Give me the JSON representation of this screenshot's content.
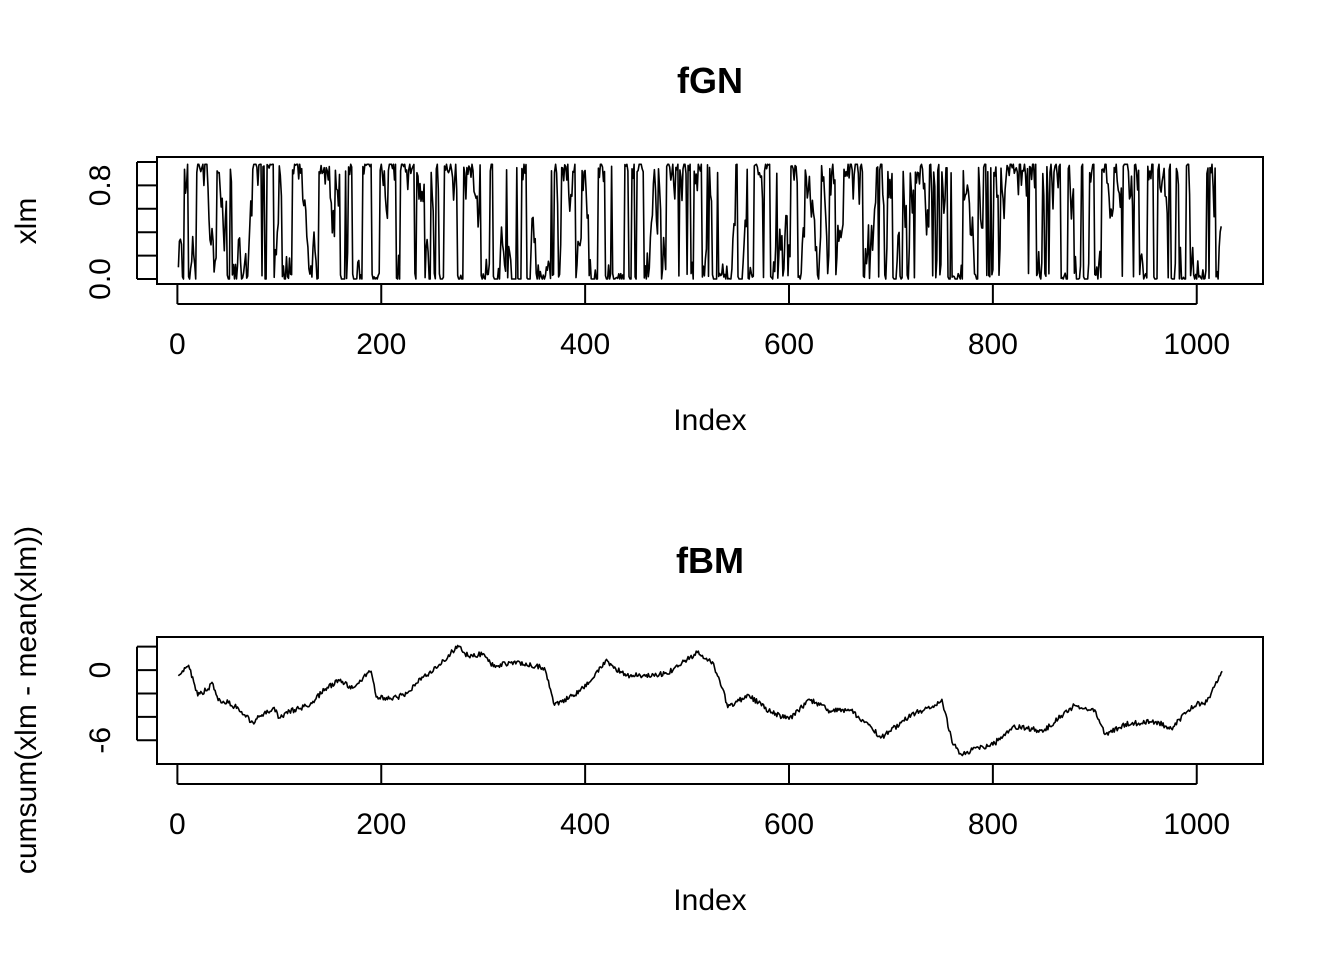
{
  "chart_data": [
    {
      "type": "line",
      "title": "fGN",
      "xlabel": "Index",
      "ylabel": "xlm",
      "xlim": [
        -20,
        1065
      ],
      "ylim": [
        0.0,
        1.0
      ],
      "x_ticks": [
        0,
        200,
        400,
        600,
        800,
        1000
      ],
      "x_tick_labels": [
        "0",
        "200",
        "400",
        "600",
        "800",
        "1000"
      ],
      "y_ticks": [
        0.0,
        0.2,
        0.4,
        0.6,
        0.8,
        1.0
      ],
      "y_tick_labels": [
        "0.0",
        "",
        "",
        "",
        "0.8",
        ""
      ],
      "n_points": 1024,
      "series": [
        {
          "values_note_x": [
            1,
            100,
            200,
            300,
            400,
            500,
            600,
            700,
            750,
            800,
            900,
            1000,
            1024
          ],
          "values": [
            0.1,
            0.65,
            0.45,
            0.6,
            0.4,
            0.6,
            0.35,
            0.55,
            0.05,
            0.5,
            0.4,
            0.7,
            0.45
          ]
        }
      ]
    },
    {
      "type": "line",
      "title": "fBM",
      "xlabel": "Index",
      "ylabel": "cumsum(xlm - mean(xlm))",
      "xlim": [
        -20,
        1065
      ],
      "ylim": [
        -7.6,
        2.4
      ],
      "x_ticks": [
        0,
        200,
        400,
        600,
        800,
        1000
      ],
      "x_tick_labels": [
        "0",
        "200",
        "400",
        "600",
        "800",
        "1000"
      ],
      "y_ticks": [
        -6,
        -4,
        -2,
        0,
        2
      ],
      "y_tick_labels": [
        "-6",
        "",
        "",
        "0",
        ""
      ],
      "n_points": 1024,
      "series": [
        {
          "x": [
            1,
            10,
            12,
            20,
            35,
            40,
            50,
            60,
            75,
            80,
            95,
            100,
            110,
            120,
            130,
            145,
            160,
            170,
            190,
            195,
            210,
            225,
            240,
            255,
            270,
            275,
            285,
            300,
            310,
            330,
            360,
            370,
            395,
            405,
            420,
            440,
            460,
            480,
            500,
            510,
            525,
            535,
            540,
            560,
            580,
            600,
            620,
            640,
            660,
            680,
            690,
            710,
            720,
            740,
            750,
            760,
            770,
            780,
            800,
            820,
            850,
            880,
            900,
            910,
            930,
            960,
            975,
            990,
            1000,
            1010,
            1025
          ],
          "y": [
            -0.5,
            0.3,
            0.1,
            -2.2,
            -1.2,
            -2.6,
            -2.8,
            -3.3,
            -4.6,
            -4.0,
            -3.2,
            -4.1,
            -3.5,
            -3.3,
            -3.0,
            -1.6,
            -0.8,
            -1.6,
            -0.1,
            -2.3,
            -2.5,
            -2.0,
            -0.6,
            0.2,
            1.6,
            2.1,
            1.2,
            1.4,
            0.3,
            0.7,
            0.2,
            -3.0,
            -1.8,
            -1.0,
            0.8,
            -0.5,
            -0.4,
            -0.3,
            0.9,
            1.5,
            0.7,
            -1.6,
            -3.2,
            -2.1,
            -3.5,
            -4.2,
            -2.5,
            -3.5,
            -3.4,
            -4.8,
            -5.8,
            -4.5,
            -3.8,
            -3.2,
            -2.5,
            -6.2,
            -7.3,
            -6.8,
            -6.4,
            -4.8,
            -5.2,
            -3.0,
            -3.4,
            -5.5,
            -4.6,
            -4.4,
            -5.0,
            -3.6,
            -2.9,
            -2.7,
            -0.1
          ]
        }
      ]
    }
  ]
}
